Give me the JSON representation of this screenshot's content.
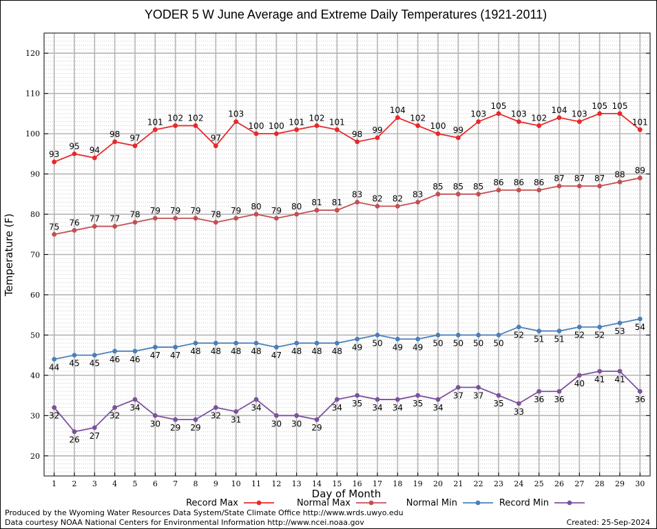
{
  "chart_data": {
    "type": "line",
    "title": "YODER 5 W June Average and Extreme Daily Temperatures (1921-2011)",
    "xlabel": "Day of Month",
    "ylabel": "Temperature (F)",
    "xlim": [
      0.5,
      30.5
    ],
    "ylim": [
      15,
      125
    ],
    "y_ticks": [
      20,
      30,
      40,
      50,
      60,
      70,
      80,
      90,
      100,
      110,
      120
    ],
    "x": [
      1,
      2,
      3,
      4,
      5,
      6,
      7,
      8,
      9,
      10,
      11,
      12,
      13,
      14,
      15,
      16,
      17,
      18,
      19,
      20,
      21,
      22,
      23,
      24,
      25,
      26,
      27,
      28,
      29,
      30
    ],
    "grid": true,
    "legend_position": "bottom",
    "series": [
      {
        "name": "Record Max",
        "color": "#e8282a",
        "label_pos": "above",
        "values": [
          93,
          95,
          94,
          98,
          97,
          101,
          102,
          102,
          97,
          103,
          100,
          100,
          101,
          102,
          101,
          98,
          99,
          104,
          102,
          100,
          99,
          103,
          105,
          103,
          102,
          104,
          103,
          105,
          105,
          101
        ]
      },
      {
        "name": "Normal Max",
        "color": "#c44e52",
        "label_pos": "above",
        "values": [
          75,
          76,
          77,
          77,
          78,
          79,
          79,
          79,
          78,
          79,
          80,
          79,
          80,
          81,
          81,
          83,
          82,
          82,
          83,
          85,
          85,
          85,
          86,
          86,
          86,
          87,
          87,
          87,
          88,
          89
        ]
      },
      {
        "name": "Normal Min",
        "color": "#4a7fb8",
        "label_pos": "below",
        "values": [
          44,
          45,
          45,
          46,
          46,
          47,
          47,
          48,
          48,
          48,
          48,
          47,
          48,
          48,
          48,
          49,
          50,
          49,
          49,
          50,
          50,
          50,
          50,
          52,
          51,
          51,
          52,
          52,
          53,
          54
        ]
      },
      {
        "name": "Record Min",
        "color": "#7b519c",
        "label_pos": "below",
        "values": [
          32,
          26,
          27,
          32,
          34,
          30,
          29,
          29,
          32,
          31,
          34,
          30,
          30,
          29,
          34,
          35,
          34,
          34,
          35,
          34,
          37,
          37,
          35,
          33,
          36,
          36,
          40,
          41,
          41,
          36
        ]
      }
    ]
  },
  "footer": {
    "produced_by": "Produced by the Wyoming Water Resources Data System/State Climate Office http://www.wrds.uwyo.edu",
    "data_courtesy": "Data courtesy NOAA National Centers for Environmental Information http://www.ncei.noaa.gov",
    "created": "Created:  25-Sep-2024"
  }
}
